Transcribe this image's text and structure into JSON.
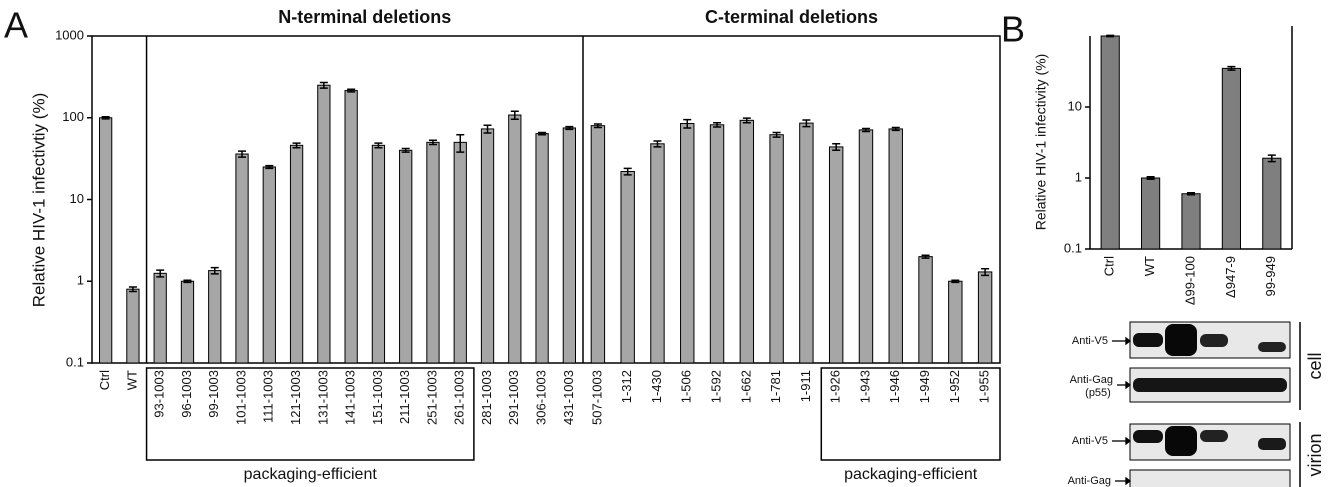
{
  "panel_labels": [
    "A",
    "B"
  ],
  "chart_data": [
    {
      "type": "bar",
      "ylabel": "Relative HIV-1 infectivtiy (%)",
      "log_scale": true,
      "categories": [
        "Ctrl",
        "WT",
        "93-1003",
        "96-1003",
        "99-1003",
        "101-1003",
        "111-1003",
        "121-1003",
        "131-1003",
        "141-1003",
        "151-1003",
        "211-1003",
        "251-1003",
        "261-1003",
        "281-1003",
        "291-1003",
        "306-1003",
        "431-1003",
        "507-1003",
        "1-312",
        "1-430",
        "1-506",
        "1-592",
        "1-662",
        "1-781",
        "1-911",
        "1-926",
        "1-943",
        "1-946",
        "1-949",
        "1-952",
        "1-955"
      ],
      "values": [
        100,
        0.8,
        1.25,
        1.0,
        1.35,
        36,
        25,
        46,
        250,
        215,
        46,
        40,
        50,
        50,
        73,
        108,
        64,
        75,
        80,
        22,
        48,
        85,
        82,
        93,
        62,
        86,
        44,
        71,
        73,
        2.0,
        1.0,
        1.3
      ],
      "errors": [
        3,
        0.05,
        0.12,
        0.03,
        0.12,
        3,
        1,
        3,
        20,
        8,
        3,
        2,
        3,
        12,
        8,
        12,
        2,
        3,
        4,
        2,
        4,
        10,
        5,
        6,
        4,
        8,
        4,
        3,
        3,
        0.08,
        0.03,
        0.12
      ],
      "color": "#a6a6a6",
      "ylim": [
        0.1,
        1000
      ],
      "yticks": [
        0.1,
        1,
        10,
        100,
        1000
      ],
      "group_labels": [
        "N-terminal deletions",
        "C-terminal deletions"
      ],
      "box_labels": [
        "packaging-efficient",
        "packaging-efficient"
      ]
    },
    {
      "type": "bar",
      "ylabel": "Relative HIV-1 infectivity (%)",
      "log_scale": true,
      "categories": [
        "Ctrl",
        "WT",
        "Δ99-100",
        "Δ947-9",
        "99-949"
      ],
      "values": [
        100,
        1.0,
        0.6,
        35,
        1.9
      ],
      "errors": [
        2,
        0.04,
        0.02,
        2,
        0.2
      ],
      "color": "#7f7f7f",
      "ylim": [
        0.1,
        100
      ],
      "yticks": [
        0.1,
        1,
        10
      ]
    }
  ],
  "blots": {
    "rows": [
      {
        "label": "Anti-V5"
      },
      {
        "label": "Anti-Gag",
        "sublabel": "(p55)"
      },
      {
        "label": "Anti-V5"
      },
      {
        "label": "Anti-Gag"
      }
    ],
    "groups": [
      "cell",
      "virion"
    ]
  }
}
